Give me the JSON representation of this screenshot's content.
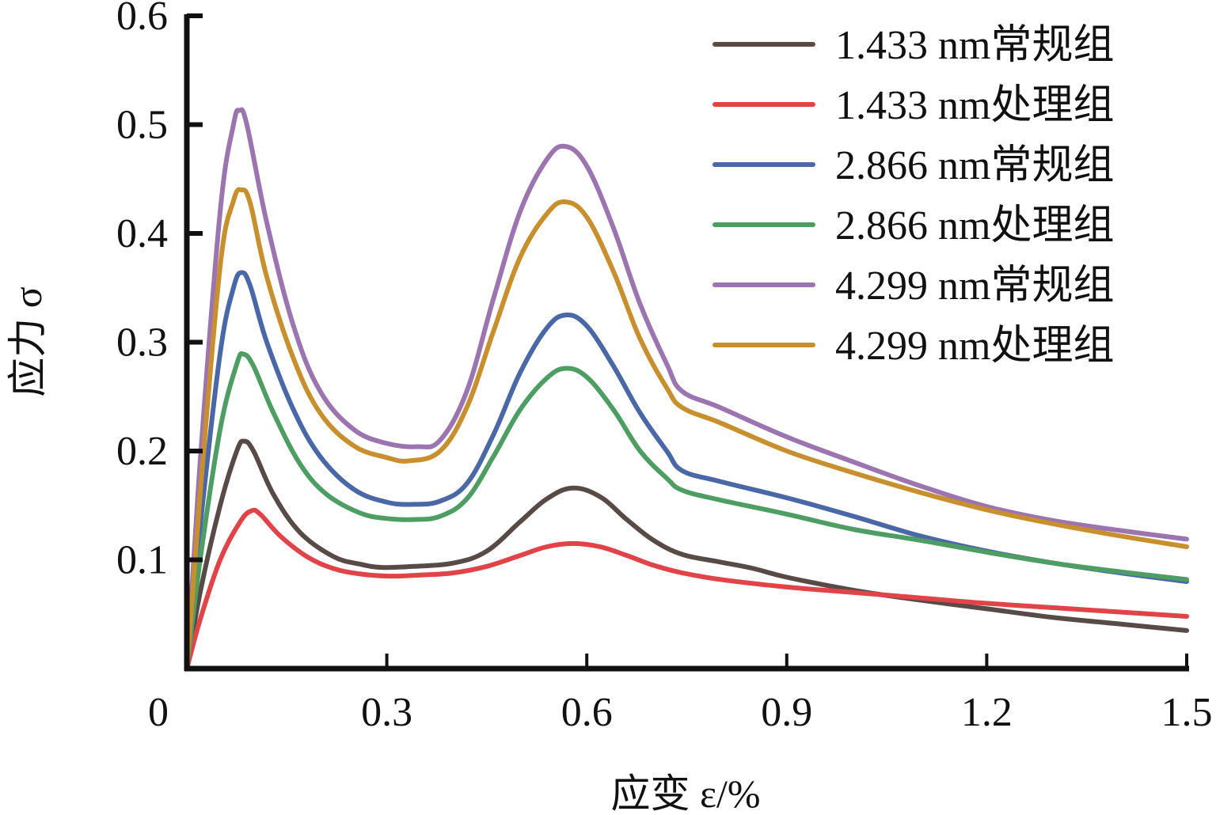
{
  "chart_data": {
    "type": "line",
    "title": "",
    "xlabel": "应变 ε/%",
    "ylabel": "应力 σ",
    "xlim": [
      0,
      1.5
    ],
    "ylim": [
      0,
      0.6
    ],
    "xticks": [
      0,
      0.3,
      0.6,
      0.9,
      1.2,
      1.5
    ],
    "xtick_labels": [
      "0",
      "0.3",
      "0.6",
      "0.9",
      "1.2",
      "1.5"
    ],
    "yticks": [
      0.1,
      0.2,
      0.3,
      0.4,
      0.5,
      0.6
    ],
    "ytick_labels": [
      "0.1",
      "0.2",
      "0.3",
      "0.4",
      "0.5",
      "0.6"
    ],
    "grid": false,
    "legend_position": "top-right",
    "series": [
      {
        "name": "1.433 nm常规组",
        "color": "#574a47",
        "x": [
          0,
          0.02,
          0.05,
          0.075,
          0.086,
          0.1,
          0.13,
          0.17,
          0.22,
          0.26,
          0.293,
          0.34,
          0.4,
          0.45,
          0.5,
          0.54,
          0.579,
          0.62,
          0.66,
          0.7,
          0.743,
          0.8,
          0.85,
          0.9,
          1.0,
          1.1,
          1.2,
          1.3,
          1.4,
          1.5
        ],
        "y": [
          0,
          0.07,
          0.15,
          0.2,
          0.209,
          0.2,
          0.16,
          0.125,
          0.103,
          0.096,
          0.093,
          0.094,
          0.097,
          0.108,
          0.135,
          0.156,
          0.166,
          0.158,
          0.137,
          0.118,
          0.105,
          0.098,
          0.092,
          0.084,
          0.072,
          0.063,
          0.055,
          0.047,
          0.041,
          0.035
        ]
      },
      {
        "name": "1.433 nm处理组",
        "color": "#e04448",
        "x": [
          0,
          0.02,
          0.05,
          0.08,
          0.097,
          0.11,
          0.14,
          0.18,
          0.22,
          0.26,
          0.304,
          0.35,
          0.4,
          0.45,
          0.5,
          0.54,
          0.579,
          0.62,
          0.66,
          0.7,
          0.743,
          0.8,
          0.9,
          1.0,
          1.1,
          1.2,
          1.3,
          1.4,
          1.5
        ],
        "y": [
          0,
          0.045,
          0.1,
          0.135,
          0.145,
          0.142,
          0.122,
          0.103,
          0.092,
          0.087,
          0.085,
          0.086,
          0.088,
          0.094,
          0.104,
          0.112,
          0.115,
          0.112,
          0.104,
          0.095,
          0.088,
          0.082,
          0.075,
          0.07,
          0.065,
          0.06,
          0.056,
          0.052,
          0.048
        ]
      },
      {
        "name": "2.866 nm常规组",
        "color": "#4a67a6",
        "x": [
          0,
          0.02,
          0.05,
          0.07,
          0.082,
          0.095,
          0.12,
          0.16,
          0.2,
          0.25,
          0.3,
          0.34,
          0.38,
          0.42,
          0.46,
          0.5,
          0.54,
          0.569,
          0.6,
          0.64,
          0.68,
          0.72,
          0.743,
          0.8,
          0.9,
          1.0,
          1.1,
          1.2,
          1.3,
          1.4,
          1.5
        ],
        "y": [
          0,
          0.13,
          0.29,
          0.35,
          0.364,
          0.352,
          0.3,
          0.238,
          0.195,
          0.165,
          0.153,
          0.151,
          0.154,
          0.17,
          0.215,
          0.272,
          0.313,
          0.325,
          0.315,
          0.278,
          0.235,
          0.2,
          0.182,
          0.172,
          0.157,
          0.14,
          0.122,
          0.108,
          0.097,
          0.088,
          0.08
        ]
      },
      {
        "name": "2.866 nm处理组",
        "color": "#4e9e64",
        "x": [
          0,
          0.02,
          0.05,
          0.075,
          0.085,
          0.1,
          0.13,
          0.17,
          0.21,
          0.26,
          0.3,
          0.34,
          0.38,
          0.42,
          0.46,
          0.5,
          0.54,
          0.569,
          0.6,
          0.64,
          0.68,
          0.72,
          0.743,
          0.8,
          0.9,
          1.0,
          1.1,
          1.2,
          1.3,
          1.4,
          1.5
        ],
        "y": [
          0,
          0.1,
          0.22,
          0.28,
          0.289,
          0.278,
          0.235,
          0.188,
          0.16,
          0.143,
          0.138,
          0.137,
          0.14,
          0.156,
          0.195,
          0.238,
          0.267,
          0.276,
          0.268,
          0.238,
          0.2,
          0.175,
          0.164,
          0.155,
          0.142,
          0.128,
          0.118,
          0.107,
          0.097,
          0.089,
          0.082
        ]
      },
      {
        "name": "4.299 nm常规组",
        "color": "#9b74b0",
        "x": [
          0,
          0.02,
          0.05,
          0.07,
          0.079,
          0.09,
          0.12,
          0.16,
          0.2,
          0.25,
          0.3,
          0.346,
          0.38,
          0.42,
          0.46,
          0.5,
          0.54,
          0.568,
          0.6,
          0.64,
          0.68,
          0.72,
          0.743,
          0.8,
          0.9,
          1.0,
          1.1,
          1.2,
          1.3,
          1.4,
          1.5
        ],
        "y": [
          0,
          0.19,
          0.42,
          0.5,
          0.513,
          0.5,
          0.41,
          0.315,
          0.255,
          0.22,
          0.207,
          0.204,
          0.21,
          0.255,
          0.34,
          0.42,
          0.468,
          0.48,
          0.462,
          0.405,
          0.335,
          0.28,
          0.255,
          0.24,
          0.213,
          0.19,
          0.168,
          0.149,
          0.136,
          0.127,
          0.119
        ]
      },
      {
        "name": "4.299 nm处理组",
        "color": "#c78f2e",
        "x": [
          0,
          0.02,
          0.05,
          0.07,
          0.082,
          0.095,
          0.12,
          0.16,
          0.2,
          0.25,
          0.3,
          0.334,
          0.38,
          0.42,
          0.46,
          0.5,
          0.54,
          0.568,
          0.6,
          0.64,
          0.68,
          0.72,
          0.743,
          0.8,
          0.9,
          1.0,
          1.1,
          1.2,
          1.3,
          1.4,
          1.5
        ],
        "y": [
          0,
          0.16,
          0.37,
          0.43,
          0.44,
          0.428,
          0.36,
          0.285,
          0.235,
          0.205,
          0.194,
          0.191,
          0.2,
          0.24,
          0.31,
          0.378,
          0.418,
          0.429,
          0.415,
          0.365,
          0.303,
          0.258,
          0.24,
          0.226,
          0.2,
          0.18,
          0.162,
          0.146,
          0.133,
          0.122,
          0.112
        ]
      }
    ]
  }
}
